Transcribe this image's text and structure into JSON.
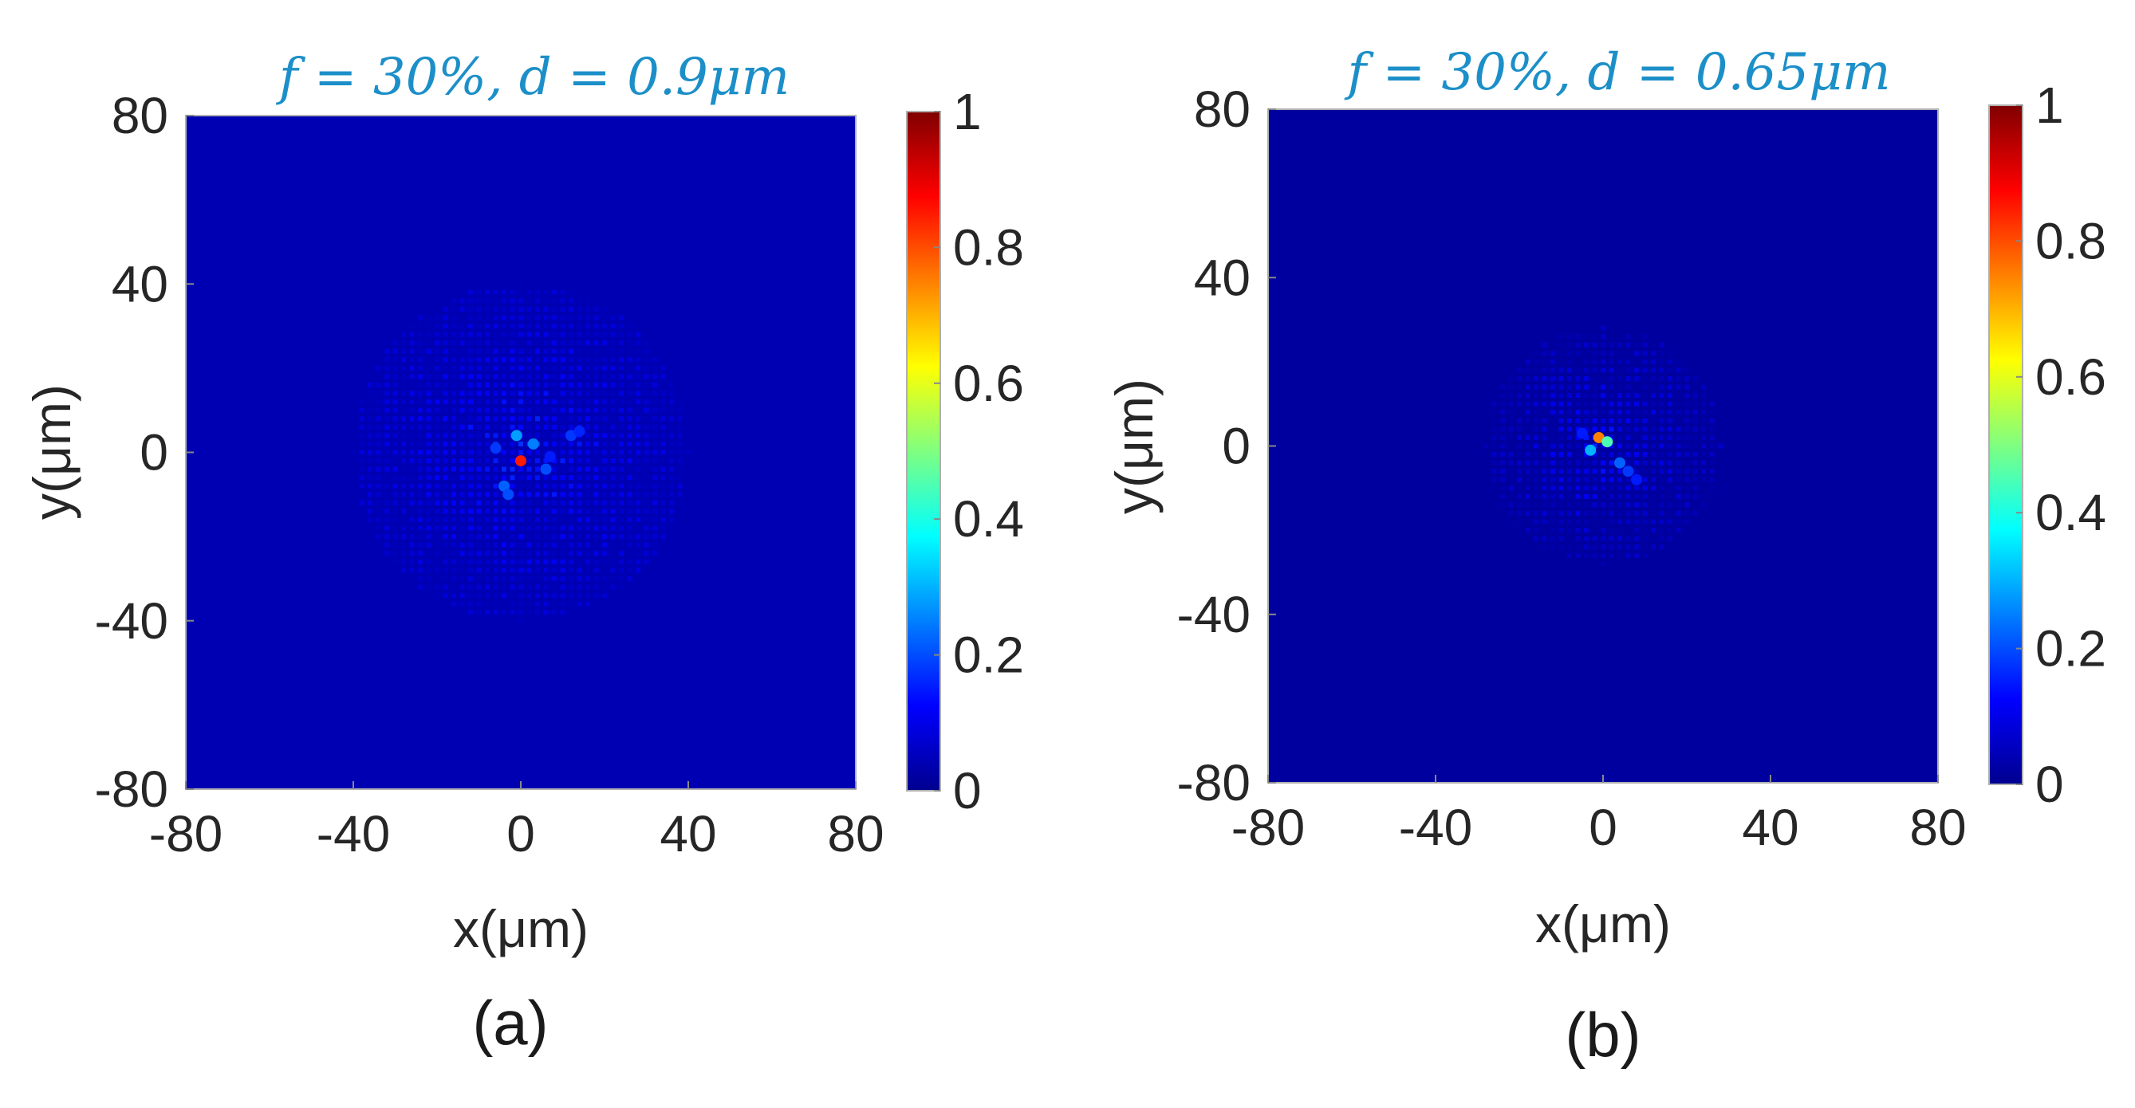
{
  "chart_data": [
    {
      "type": "heatmap",
      "panel": "a",
      "title": "f = 30%, d = 0.9μm",
      "xlabel": "x(μm)",
      "ylabel": "y(μm)",
      "xlim": [
        -80,
        80
      ],
      "ylim": [
        -80,
        80
      ],
      "xticks": [
        "-80",
        "-40",
        "0",
        "40",
        "80"
      ],
      "yticks": [
        "80",
        "40",
        "0",
        "-40",
        "-80"
      ],
      "colorbar": {
        "min": 0,
        "max": 1,
        "ticks": [
          "1",
          "0.8",
          "0.6",
          "0.4",
          "0.2",
          "0"
        ],
        "colormap": "jet"
      },
      "caption": "(a)",
      "background_level": 0.05,
      "halo_radius": 40,
      "hotspots": [
        {
          "x": 0,
          "y": -2,
          "value": 0.85
        },
        {
          "x": -1,
          "y": 4,
          "value": 0.28
        },
        {
          "x": 3,
          "y": 2,
          "value": 0.25
        },
        {
          "x": -4,
          "y": -8,
          "value": 0.22
        },
        {
          "x": -3,
          "y": -10,
          "value": 0.2
        },
        {
          "x": 6,
          "y": -4,
          "value": 0.2
        },
        {
          "x": 12,
          "y": 4,
          "value": 0.18
        },
        {
          "x": 14,
          "y": 5,
          "value": 0.16
        },
        {
          "x": -6,
          "y": 1,
          "value": 0.18
        },
        {
          "x": 7,
          "y": -1,
          "value": 0.15
        }
      ]
    },
    {
      "type": "heatmap",
      "panel": "b",
      "title": "f = 30%, d = 0.65μm",
      "xlabel": "x(μm)",
      "ylabel": "y(μm)",
      "xlim": [
        -80,
        80
      ],
      "ylim": [
        -80,
        80
      ],
      "xticks": [
        "-80",
        "-40",
        "0",
        "40",
        "80"
      ],
      "yticks": [
        "80",
        "40",
        "0",
        "-40",
        "-80"
      ],
      "colorbar": {
        "min": 0,
        "max": 1,
        "ticks": [
          "1",
          "0.8",
          "0.6",
          "0.4",
          "0.2",
          "0"
        ],
        "colormap": "jet"
      },
      "caption": "(b)",
      "background_level": 0.03,
      "halo_radius": 28,
      "hotspots": [
        {
          "x": -1,
          "y": 2,
          "value": 0.75
        },
        {
          "x": 1,
          "y": 1,
          "value": 0.45
        },
        {
          "x": -3,
          "y": -1,
          "value": 0.3
        },
        {
          "x": 4,
          "y": -4,
          "value": 0.22
        },
        {
          "x": 6,
          "y": -6,
          "value": 0.18
        },
        {
          "x": 8,
          "y": -8,
          "value": 0.15
        },
        {
          "x": -5,
          "y": 3,
          "value": 0.15
        }
      ]
    }
  ]
}
